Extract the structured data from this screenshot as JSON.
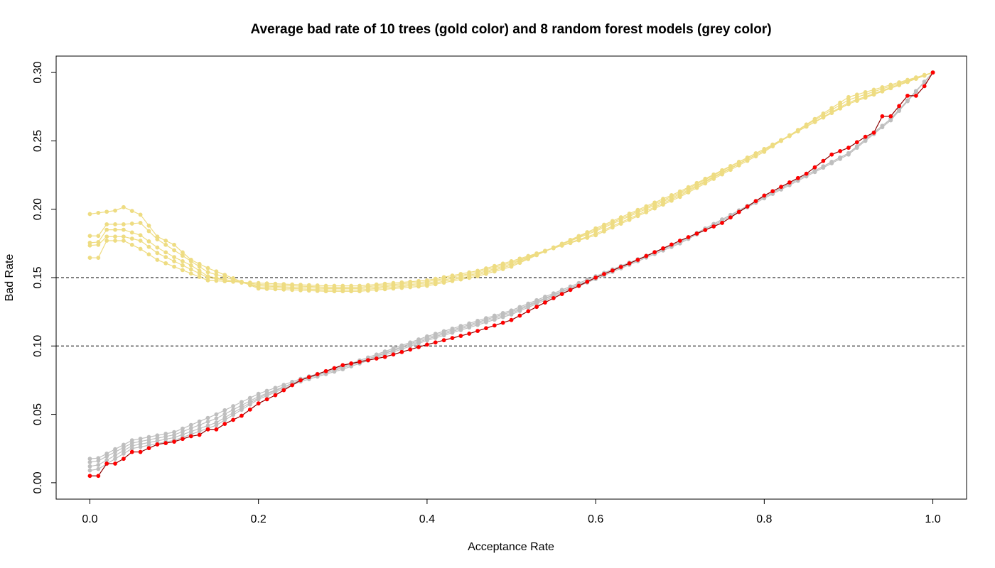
{
  "chart_data": {
    "type": "line",
    "title": "Average bad rate of 10 trees (gold color) and 8 random forest models (grey color)",
    "xlabel": "Acceptance Rate",
    "ylabel": "Bad Rate",
    "xlim": [
      -0.04,
      1.04
    ],
    "ylim": [
      -0.012,
      0.312
    ],
    "x_ticks": [
      0.0,
      0.2,
      0.4,
      0.6,
      0.8,
      1.0
    ],
    "x_tick_labels": [
      "0.0",
      "0.2",
      "0.4",
      "0.6",
      "0.8",
      "1.0"
    ],
    "y_ticks": [
      0.0,
      0.05,
      0.1,
      0.15,
      0.2,
      0.25,
      0.3
    ],
    "y_tick_labels": [
      "0.00",
      "0.05",
      "0.10",
      "0.15",
      "0.20",
      "0.25",
      "0.30"
    ],
    "reference_lines": [
      {
        "y": 0.15,
        "style": "dashed",
        "color": "#000000"
      },
      {
        "y": 0.1,
        "style": "dashed",
        "color": "#000000"
      }
    ],
    "x_step": 0.01,
    "x_points": 101,
    "colors": {
      "gold": "#EEDC82",
      "grey": "#BEBEBE",
      "red": "#FF0000",
      "red_line": "#8B0000"
    },
    "series": [
      {
        "group": "gold",
        "color": "#EEDC82",
        "y_knots": [
          [
            0.0,
            0.1965
          ],
          [
            0.03,
            0.199
          ],
          [
            0.04,
            0.2015
          ],
          [
            0.06,
            0.196
          ],
          [
            0.08,
            0.18
          ],
          [
            0.1,
            0.174
          ],
          [
            0.12,
            0.163
          ],
          [
            0.14,
            0.157
          ],
          [
            0.2,
            0.142
          ],
          [
            0.28,
            0.14
          ],
          [
            0.32,
            0.14
          ],
          [
            0.4,
            0.144
          ],
          [
            0.46,
            0.151
          ],
          [
            0.5,
            0.158
          ],
          [
            0.6,
            0.186
          ],
          [
            0.7,
            0.213
          ],
          [
            0.8,
            0.244
          ],
          [
            0.9,
            0.277
          ],
          [
            1.0,
            0.3
          ]
        ]
      },
      {
        "group": "gold",
        "color": "#EEDC82",
        "y_knots": [
          [
            0.0,
            0.1805
          ],
          [
            0.01,
            0.1805
          ],
          [
            0.02,
            0.189
          ],
          [
            0.04,
            0.189
          ],
          [
            0.06,
            0.19
          ],
          [
            0.08,
            0.178
          ],
          [
            0.1,
            0.17
          ],
          [
            0.12,
            0.162
          ],
          [
            0.14,
            0.154
          ],
          [
            0.2,
            0.143
          ],
          [
            0.28,
            0.141
          ],
          [
            0.32,
            0.141
          ],
          [
            0.4,
            0.145
          ],
          [
            0.46,
            0.152
          ],
          [
            0.5,
            0.159
          ],
          [
            0.6,
            0.185
          ],
          [
            0.7,
            0.212
          ],
          [
            0.8,
            0.244
          ],
          [
            0.9,
            0.277
          ],
          [
            1.0,
            0.3
          ]
        ]
      },
      {
        "group": "gold",
        "color": "#EEDC82",
        "y_knots": [
          [
            0.0,
            0.1755
          ],
          [
            0.01,
            0.176
          ],
          [
            0.02,
            0.185
          ],
          [
            0.04,
            0.185
          ],
          [
            0.06,
            0.181
          ],
          [
            0.08,
            0.172
          ],
          [
            0.1,
            0.165
          ],
          [
            0.12,
            0.159
          ],
          [
            0.14,
            0.151
          ],
          [
            0.2,
            0.144
          ],
          [
            0.28,
            0.142
          ],
          [
            0.32,
            0.142
          ],
          [
            0.4,
            0.146
          ],
          [
            0.46,
            0.153
          ],
          [
            0.5,
            0.16
          ],
          [
            0.6,
            0.184
          ],
          [
            0.7,
            0.211
          ],
          [
            0.8,
            0.243
          ],
          [
            0.9,
            0.278
          ],
          [
            1.0,
            0.3
          ]
        ]
      },
      {
        "group": "gold",
        "color": "#EEDC82",
        "y_knots": [
          [
            0.0,
            0.1735
          ],
          [
            0.01,
            0.174
          ],
          [
            0.02,
            0.18
          ],
          [
            0.04,
            0.18
          ],
          [
            0.06,
            0.177
          ],
          [
            0.08,
            0.168
          ],
          [
            0.1,
            0.162
          ],
          [
            0.12,
            0.156
          ],
          [
            0.14,
            0.15
          ],
          [
            0.2,
            0.145
          ],
          [
            0.28,
            0.143
          ],
          [
            0.32,
            0.143
          ],
          [
            0.4,
            0.147
          ],
          [
            0.46,
            0.154
          ],
          [
            0.5,
            0.161
          ],
          [
            0.6,
            0.182
          ],
          [
            0.7,
            0.21
          ],
          [
            0.8,
            0.243
          ],
          [
            0.9,
            0.28
          ],
          [
            1.0,
            0.3
          ]
        ]
      },
      {
        "group": "gold",
        "color": "#EEDC82",
        "y_knots": [
          [
            0.0,
            0.1645
          ],
          [
            0.01,
            0.1645
          ],
          [
            0.02,
            0.177
          ],
          [
            0.04,
            0.177
          ],
          [
            0.06,
            0.171
          ],
          [
            0.08,
            0.163
          ],
          [
            0.1,
            0.158
          ],
          [
            0.12,
            0.153
          ],
          [
            0.14,
            0.148
          ],
          [
            0.2,
            0.146
          ],
          [
            0.28,
            0.144
          ],
          [
            0.32,
            0.144
          ],
          [
            0.4,
            0.148
          ],
          [
            0.46,
            0.155
          ],
          [
            0.5,
            0.162
          ],
          [
            0.6,
            0.181
          ],
          [
            0.7,
            0.209
          ],
          [
            0.8,
            0.242
          ],
          [
            0.9,
            0.282
          ],
          [
            1.0,
            0.3
          ]
        ]
      },
      {
        "group": "grey",
        "color": "#BEBEBE",
        "y_knots": [
          [
            0.0,
            0.0175
          ],
          [
            0.01,
            0.018
          ],
          [
            0.05,
            0.031
          ],
          [
            0.1,
            0.037
          ],
          [
            0.15,
            0.05
          ],
          [
            0.2,
            0.065
          ],
          [
            0.25,
            0.076
          ],
          [
            0.3,
            0.085
          ],
          [
            0.4,
            0.107
          ],
          [
            0.5,
            0.126
          ],
          [
            0.6,
            0.151
          ],
          [
            0.7,
            0.176
          ],
          [
            0.8,
            0.209
          ],
          [
            0.9,
            0.241
          ],
          [
            0.95,
            0.266
          ],
          [
            1.0,
            0.3
          ]
        ]
      },
      {
        "group": "grey",
        "color": "#BEBEBE",
        "y_knots": [
          [
            0.0,
            0.015
          ],
          [
            0.01,
            0.016
          ],
          [
            0.05,
            0.029
          ],
          [
            0.1,
            0.035
          ],
          [
            0.15,
            0.047
          ],
          [
            0.2,
            0.063
          ],
          [
            0.25,
            0.075
          ],
          [
            0.3,
            0.084
          ],
          [
            0.4,
            0.106
          ],
          [
            0.5,
            0.125
          ],
          [
            0.6,
            0.15
          ],
          [
            0.7,
            0.176
          ],
          [
            0.8,
            0.209
          ],
          [
            0.9,
            0.241
          ],
          [
            0.95,
            0.266
          ],
          [
            1.0,
            0.3
          ]
        ]
      },
      {
        "group": "grey",
        "color": "#BEBEBE",
        "y_knots": [
          [
            0.0,
            0.012
          ],
          [
            0.01,
            0.013
          ],
          [
            0.05,
            0.027
          ],
          [
            0.1,
            0.033
          ],
          [
            0.15,
            0.044
          ],
          [
            0.2,
            0.062
          ],
          [
            0.25,
            0.075
          ],
          [
            0.3,
            0.084
          ],
          [
            0.4,
            0.105
          ],
          [
            0.5,
            0.124
          ],
          [
            0.6,
            0.15
          ],
          [
            0.7,
            0.176
          ],
          [
            0.8,
            0.209
          ],
          [
            0.9,
            0.241
          ],
          [
            0.95,
            0.266
          ],
          [
            1.0,
            0.3
          ]
        ]
      },
      {
        "group": "grey",
        "color": "#BEBEBE",
        "y_knots": [
          [
            0.0,
            0.009
          ],
          [
            0.01,
            0.01
          ],
          [
            0.05,
            0.025
          ],
          [
            0.1,
            0.031
          ],
          [
            0.15,
            0.042
          ],
          [
            0.2,
            0.061
          ],
          [
            0.25,
            0.074
          ],
          [
            0.3,
            0.083
          ],
          [
            0.4,
            0.104
          ],
          [
            0.5,
            0.123
          ],
          [
            0.6,
            0.149
          ],
          [
            0.7,
            0.175
          ],
          [
            0.8,
            0.208
          ],
          [
            0.9,
            0.24
          ],
          [
            0.95,
            0.265
          ],
          [
            1.0,
            0.3
          ]
        ]
      },
      {
        "group": "red",
        "color": "#FF0000",
        "line_color": "#8B0000",
        "y_knots": [
          [
            0.0,
            0.005
          ],
          [
            0.01,
            0.005
          ],
          [
            0.02,
            0.014
          ],
          [
            0.03,
            0.014
          ],
          [
            0.04,
            0.0175
          ],
          [
            0.05,
            0.0225
          ],
          [
            0.06,
            0.0225
          ],
          [
            0.08,
            0.028
          ],
          [
            0.1,
            0.03
          ],
          [
            0.12,
            0.034
          ],
          [
            0.13,
            0.035
          ],
          [
            0.14,
            0.039
          ],
          [
            0.15,
            0.039
          ],
          [
            0.16,
            0.043
          ],
          [
            0.18,
            0.049
          ],
          [
            0.2,
            0.058
          ],
          [
            0.22,
            0.064
          ],
          [
            0.25,
            0.075
          ],
          [
            0.3,
            0.086
          ],
          [
            0.35,
            0.092
          ],
          [
            0.4,
            0.101
          ],
          [
            0.45,
            0.109
          ],
          [
            0.5,
            0.119
          ],
          [
            0.55,
            0.135
          ],
          [
            0.6,
            0.15
          ],
          [
            0.65,
            0.163
          ],
          [
            0.7,
            0.177
          ],
          [
            0.75,
            0.19
          ],
          [
            0.8,
            0.21
          ],
          [
            0.85,
            0.226
          ],
          [
            0.88,
            0.24
          ],
          [
            0.9,
            0.245
          ],
          [
            0.92,
            0.253
          ],
          [
            0.93,
            0.256
          ],
          [
            0.94,
            0.268
          ],
          [
            0.95,
            0.268
          ],
          [
            0.97,
            0.283
          ],
          [
            0.98,
            0.283
          ],
          [
            0.99,
            0.29
          ],
          [
            1.0,
            0.3
          ]
        ]
      }
    ]
  }
}
